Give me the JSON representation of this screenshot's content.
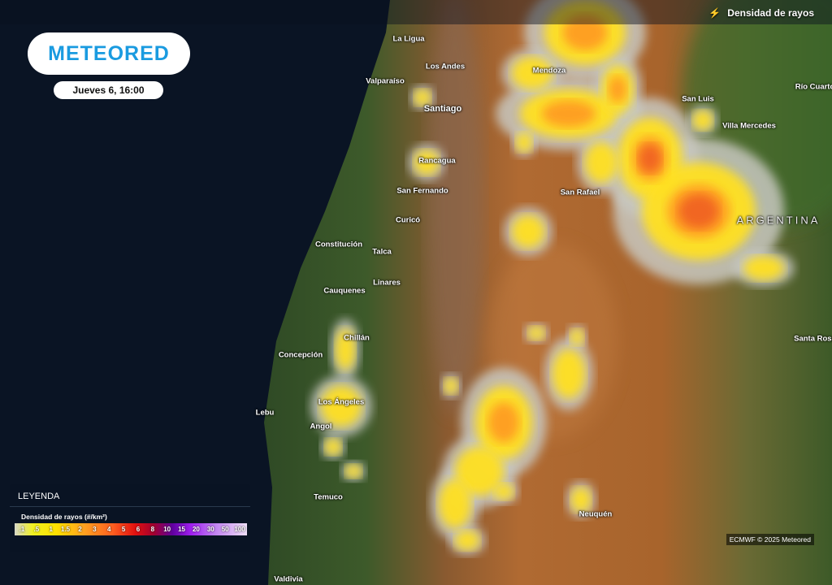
{
  "header": {
    "layer_title": "Densidad de rayos",
    "layer_icon": "lightning-icon"
  },
  "brand": {
    "logo_text": "METEORED",
    "color": "#1a9be0"
  },
  "timestamp": "Jueves 6, 16:00",
  "cities": [
    "La Ligua",
    "Los Andes",
    "Valparaíso",
    "Mendoza",
    "Santiago",
    "San Luis",
    "Río Cuarto",
    "Villa Mercedes",
    "Rancagua",
    "San Fernando",
    "San Rafael",
    "Curicó",
    "Constitución",
    "Talca",
    "Linares",
    "Cauquenes",
    "Chillán",
    "Concepción",
    "Los Ángeles",
    "Lebu",
    "Angol",
    "Temuco",
    "Neuquén",
    "Santa Rosa",
    "Valdivia"
  ],
  "country_label": "ARGENTINA",
  "legend": {
    "title": "LEYENDA",
    "subtitle": "Densidad de rayos (#/km²)",
    "ticks": [
      ".1",
      ".5",
      "1",
      "1.5",
      "2",
      "3",
      "4",
      "5",
      "6",
      "8",
      "10",
      "15",
      "20",
      "30",
      "50",
      "100"
    ]
  },
  "credit": "ECMWF © 2025 Meteored"
}
